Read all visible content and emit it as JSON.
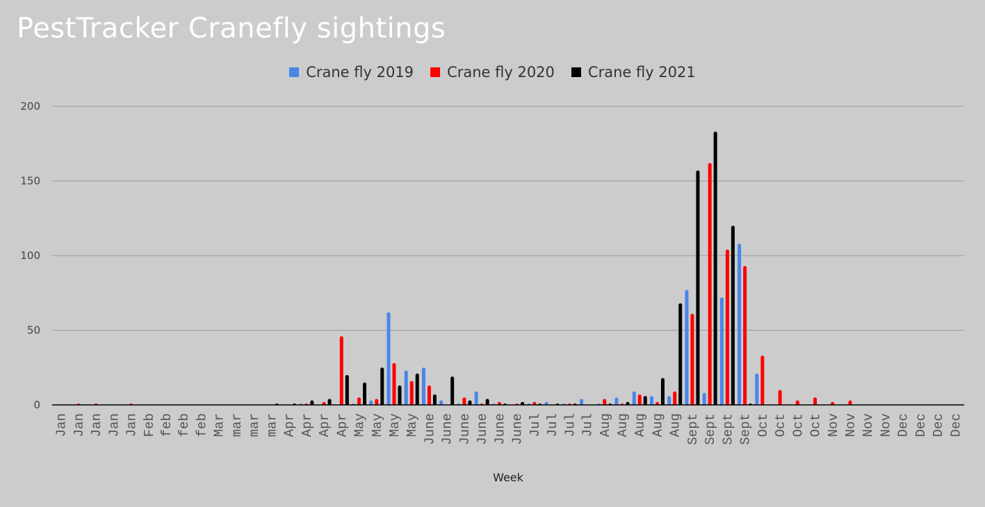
{
  "chart_data": {
    "type": "bar",
    "title": "PestTracker Cranefly sightings",
    "xlabel": "Week",
    "ylabel": "",
    "ylim": [
      0,
      200
    ],
    "yticks": [
      0,
      50,
      100,
      150,
      200
    ],
    "grid": true,
    "legend_position": "top",
    "categories": [
      "Jan",
      "Jan",
      "Jan",
      "Jan",
      "Jan",
      "Feb",
      "feb",
      "feb",
      "feb",
      "Mar",
      "mar",
      "mar",
      "mar",
      "Apr",
      "Apr",
      "Apr",
      "Apr",
      "May",
      "May",
      "May",
      "May",
      "June",
      "June",
      "June",
      "June",
      "June",
      "June",
      "Jul",
      "Jul",
      "Jul",
      "Jul",
      "Aug",
      "Aug",
      "Aug",
      "Aug",
      "Aug",
      "Sept",
      "Sept",
      "Sept",
      "Sept",
      "Oct",
      "Oct",
      "Oct",
      "Oct",
      "Nov",
      "Nov",
      "Nov",
      "Nov",
      "Dec",
      "Dec",
      "Dec",
      "Dec"
    ],
    "series": [
      {
        "name": "Crane fly 2019",
        "color": "#4a86e8",
        "values": [
          0,
          0,
          0,
          0,
          0,
          0,
          0,
          0,
          0,
          0,
          0,
          0,
          0,
          0,
          1,
          0,
          0,
          1,
          3,
          62,
          23,
          25,
          3,
          1,
          9,
          1,
          0,
          1,
          2,
          1,
          4,
          1,
          5,
          9,
          6,
          6,
          77,
          8,
          72,
          108,
          21,
          0,
          0,
          0,
          0,
          0,
          0,
          0,
          0,
          0,
          0,
          0
        ]
      },
      {
        "name": "Crane fly 2020",
        "color": "#ff0000",
        "values": [
          0,
          1,
          1,
          0,
          1,
          0,
          0,
          0,
          0,
          0,
          0,
          0,
          0,
          0,
          1,
          2,
          46,
          5,
          4,
          28,
          16,
          13,
          0,
          5,
          1,
          2,
          1,
          2,
          0,
          1,
          0,
          4,
          1,
          7,
          2,
          9,
          61,
          162,
          104,
          93,
          33,
          10,
          3,
          5,
          2,
          3,
          0,
          0,
          0,
          0,
          0,
          0
        ]
      },
      {
        "name": "Crane fly 2021",
        "color": "#000000",
        "values": [
          0,
          0,
          0,
          0,
          0,
          0,
          0,
          0,
          0,
          0,
          0,
          0,
          1,
          1,
          3,
          4,
          20,
          15,
          25,
          13,
          21,
          7,
          19,
          3,
          4,
          1,
          2,
          1,
          1,
          1,
          0,
          1,
          2,
          6,
          18,
          68,
          157,
          183,
          120,
          1,
          0,
          0,
          0,
          0,
          0,
          0,
          0,
          0,
          0,
          0,
          0,
          0
        ]
      }
    ]
  }
}
